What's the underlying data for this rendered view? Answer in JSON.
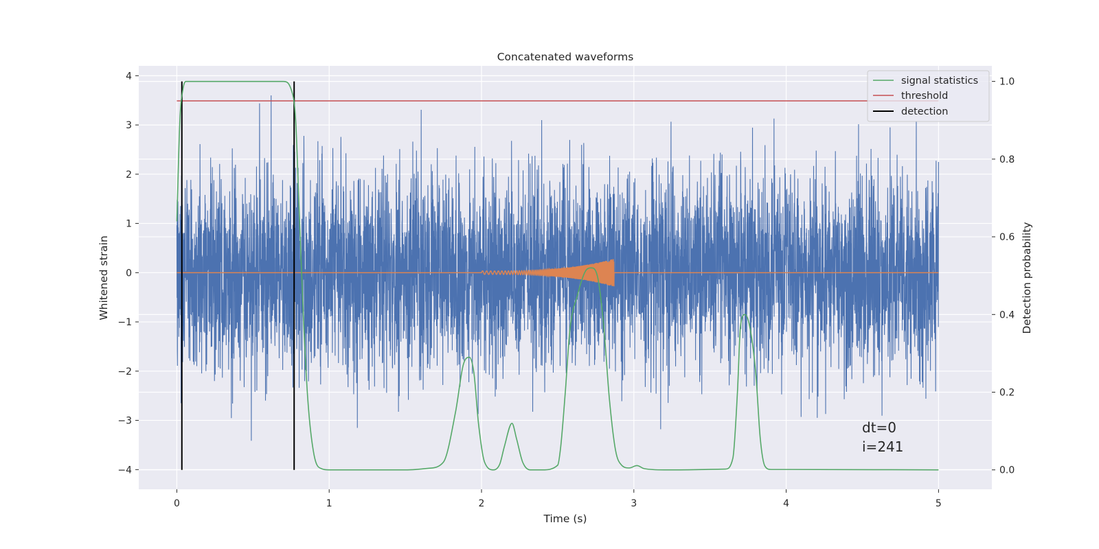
{
  "chart_data": {
    "type": "line",
    "title": "Concatenated waveforms",
    "xlabel": "Time (s)",
    "ylabel": "Whitened strain",
    "ylabel_right": "Detection probability",
    "xlim": [
      -0.25,
      5.35
    ],
    "ylim": [
      -4.4,
      4.2
    ],
    "ylim_right": [
      -0.05,
      1.04
    ],
    "xticks": [
      0,
      1,
      2,
      3,
      4,
      5
    ],
    "yticks": [
      -4,
      -3,
      -2,
      -1,
      0,
      1,
      2,
      3,
      4
    ],
    "yticks_right": [
      0.0,
      0.2,
      0.4,
      0.6,
      0.8,
      1.0
    ],
    "ytick_labels_right": [
      "0.0",
      "0.2",
      "0.4",
      "0.6",
      "0.8",
      "1.0"
    ],
    "grid": true,
    "legend_position": "top-right",
    "legend": [
      "signal statistics",
      "threshold",
      "detection"
    ],
    "colors": {
      "strain": "#4c72b0",
      "template": "#dd8452",
      "signal_statistics": "#55a868",
      "threshold": "#c44e52",
      "detection": "#000000",
      "background": "#eaeaf2",
      "grid": "#ffffff"
    },
    "strain": {
      "x_range": [
        0,
        5
      ],
      "typical_amplitude": 1.0,
      "max_amplitude": 3.6
    },
    "template": {
      "x_range": [
        2.0,
        2.87
      ],
      "max_amplitude": 0.25
    },
    "signal_statistics": {
      "x": [
        0.0,
        0.02,
        0.04,
        0.06,
        0.1,
        0.2,
        0.5,
        0.7,
        0.75,
        0.78,
        0.8,
        0.83,
        0.86,
        0.9,
        0.95,
        1.0,
        1.5,
        1.65,
        1.75,
        1.83,
        1.88,
        1.92,
        1.95,
        1.98,
        2.02,
        2.08,
        2.12,
        2.15,
        2.2,
        2.23,
        2.27,
        2.32,
        2.4,
        2.5,
        2.52,
        2.55,
        2.58,
        2.63,
        2.68,
        2.72,
        2.76,
        2.8,
        2.84,
        2.88,
        2.92,
        2.97,
        3.02,
        3.07,
        3.2,
        3.6,
        3.65,
        3.68,
        3.7,
        3.73,
        3.76,
        3.8,
        3.83,
        3.86,
        3.9,
        4.0,
        5.0
      ],
      "y": [
        0.64,
        0.9,
        0.98,
        1.0,
        1.0,
        1.0,
        1.0,
        1.0,
        0.98,
        0.9,
        0.7,
        0.4,
        0.18,
        0.04,
        0.003,
        0.0,
        0.0,
        0.004,
        0.02,
        0.15,
        0.27,
        0.29,
        0.25,
        0.12,
        0.02,
        0.0,
        0.015,
        0.06,
        0.12,
        0.08,
        0.02,
        0.0,
        0.0,
        0.012,
        0.06,
        0.2,
        0.36,
        0.45,
        0.51,
        0.52,
        0.5,
        0.38,
        0.18,
        0.05,
        0.012,
        0.005,
        0.011,
        0.003,
        0.0,
        0.002,
        0.03,
        0.2,
        0.37,
        0.4,
        0.37,
        0.25,
        0.08,
        0.01,
        0.001,
        0.001,
        0.0
      ]
    },
    "threshold": {
      "value": 0.95,
      "x_range": [
        0,
        5
      ]
    },
    "detections": [
      0.033,
      0.77
    ]
  },
  "annotation": {
    "line1": "dt=0",
    "line2": "i=241"
  }
}
